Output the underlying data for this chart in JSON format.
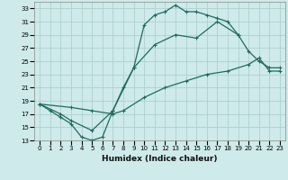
{
  "title": "",
  "xlabel": "Humidex (Indice chaleur)",
  "background_color": "#ceeaea",
  "grid_color": "#aed0d0",
  "line_color": "#1e6b5e",
  "xlim": [
    -0.5,
    23.5
  ],
  "ylim": [
    13,
    34
  ],
  "xticks": [
    0,
    1,
    2,
    3,
    4,
    5,
    6,
    7,
    8,
    9,
    10,
    11,
    12,
    13,
    14,
    15,
    16,
    17,
    18,
    19,
    20,
    21,
    22,
    23
  ],
  "yticks": [
    13,
    15,
    17,
    19,
    21,
    23,
    25,
    27,
    29,
    31,
    33
  ],
  "line1_x": [
    0,
    1,
    2,
    3,
    4,
    5,
    6,
    7,
    8,
    9,
    10,
    11,
    12,
    13,
    14,
    15,
    16,
    17,
    18,
    19,
    20,
    21,
    22,
    23
  ],
  "line1_y": [
    18.5,
    17.5,
    16.5,
    15.5,
    13.5,
    13.0,
    13.5,
    17.5,
    21.0,
    24.0,
    30.5,
    32.0,
    32.5,
    33.5,
    32.5,
    32.5,
    32.0,
    31.5,
    31.0,
    29.0,
    null,
    null,
    null,
    null
  ],
  "line2_x": [
    0,
    2,
    3,
    5,
    7,
    9,
    11,
    13,
    15,
    17,
    19,
    20,
    21,
    22,
    23
  ],
  "line2_y": [
    18.5,
    17.0,
    16.0,
    14.5,
    17.5,
    24.0,
    27.5,
    29.0,
    28.5,
    31.0,
    29.0,
    26.5,
    25.0,
    24.0,
    24.0
  ],
  "line3_x": [
    0,
    3,
    5,
    7,
    8,
    10,
    12,
    14,
    16,
    18,
    20,
    21,
    22,
    23
  ],
  "line3_y": [
    18.5,
    18.0,
    17.5,
    17.0,
    17.5,
    19.5,
    21.0,
    22.0,
    23.0,
    23.5,
    24.5,
    25.5,
    23.5,
    23.5
  ]
}
